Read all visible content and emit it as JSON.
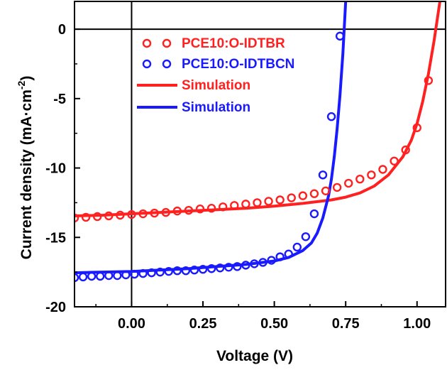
{
  "chart_data": {
    "type": "line",
    "xlabel": "Voltage (V)",
    "ylabel_main": "Current density (mA·cm",
    "ylabel_sup": "-2",
    "ylabel_close": ")",
    "xlim": [
      -0.2,
      1.1
    ],
    "ylim": [
      -20,
      2
    ],
    "x_ticks": [
      0.0,
      0.25,
      0.5,
      0.75,
      1.0
    ],
    "x_tick_labels": [
      "0.00",
      "0.25",
      "0.50",
      "0.75",
      "1.00"
    ],
    "y_ticks": [
      0,
      -5,
      -10,
      -15,
      -20
    ],
    "y_tick_labels": [
      "0",
      "-5",
      "-10",
      "-15",
      "-20"
    ],
    "reference_lines": {
      "x": 0,
      "y": 0
    },
    "grid": false,
    "legend_position": "top-center",
    "series": [
      {
        "name": "PCE10:O-IDTBR",
        "kind": "markers",
        "marker": "open-circle",
        "color": "#ff2020",
        "x": [
          -0.2,
          -0.16,
          -0.12,
          -0.08,
          -0.04,
          0.0,
          0.04,
          0.08,
          0.12,
          0.16,
          0.2,
          0.24,
          0.28,
          0.32,
          0.36,
          0.4,
          0.44,
          0.48,
          0.52,
          0.56,
          0.6,
          0.64,
          0.68,
          0.72,
          0.76,
          0.8,
          0.84,
          0.88,
          0.92,
          0.96,
          1.0,
          1.04
        ],
        "y": [
          -13.6,
          -13.55,
          -13.5,
          -13.45,
          -13.4,
          -13.35,
          -13.3,
          -13.25,
          -13.2,
          -13.1,
          -13.05,
          -12.95,
          -12.9,
          -12.8,
          -12.7,
          -12.6,
          -12.5,
          -12.4,
          -12.3,
          -12.15,
          -12.0,
          -11.85,
          -11.65,
          -11.4,
          -11.1,
          -10.8,
          -10.5,
          -10.1,
          -9.5,
          -8.7,
          -7.1,
          -3.7
        ]
      },
      {
        "name": "PCE10:O-IDTBCN",
        "kind": "markers",
        "marker": "open-circle",
        "color": "#1a1aff",
        "x": [
          -0.2,
          -0.17,
          -0.14,
          -0.11,
          -0.08,
          -0.05,
          -0.02,
          0.01,
          0.04,
          0.07,
          0.1,
          0.13,
          0.16,
          0.19,
          0.22,
          0.25,
          0.28,
          0.31,
          0.34,
          0.37,
          0.4,
          0.43,
          0.46,
          0.49,
          0.52,
          0.55,
          0.58,
          0.61,
          0.64,
          0.67,
          0.7,
          0.73
        ],
        "y": [
          -17.9,
          -17.85,
          -17.8,
          -17.8,
          -17.75,
          -17.75,
          -17.7,
          -17.65,
          -17.6,
          -17.55,
          -17.5,
          -17.45,
          -17.4,
          -17.4,
          -17.35,
          -17.3,
          -17.25,
          -17.2,
          -17.15,
          -17.1,
          -17.0,
          -16.9,
          -16.8,
          -16.65,
          -16.4,
          -16.2,
          -15.7,
          -14.95,
          -13.3,
          -10.5,
          -6.3,
          -0.5
        ]
      },
      {
        "name": "Simulation",
        "kind": "line",
        "color": "#ff2020",
        "x": [
          -0.2,
          -0.1,
          0.0,
          0.1,
          0.2,
          0.3,
          0.4,
          0.5,
          0.6,
          0.7,
          0.75,
          0.8,
          0.85,
          0.9,
          0.95,
          0.98,
          1.0,
          1.02,
          1.04,
          1.06,
          1.08
        ],
        "y": [
          -13.45,
          -13.4,
          -13.3,
          -13.2,
          -13.1,
          -13.0,
          -12.9,
          -12.75,
          -12.55,
          -12.3,
          -12.1,
          -11.8,
          -11.3,
          -10.5,
          -9.2,
          -8.0,
          -6.8,
          -5.2,
          -3.2,
          -0.8,
          2.0
        ]
      },
      {
        "name": "Simulation",
        "kind": "line",
        "color": "#1a1aff",
        "x": [
          -0.2,
          -0.1,
          0.0,
          0.1,
          0.2,
          0.3,
          0.4,
          0.5,
          0.55,
          0.6,
          0.63,
          0.65,
          0.67,
          0.69,
          0.7,
          0.71,
          0.72,
          0.73,
          0.74,
          0.75
        ],
        "y": [
          -17.55,
          -17.5,
          -17.45,
          -17.35,
          -17.25,
          -17.1,
          -16.95,
          -16.7,
          -16.45,
          -15.95,
          -15.4,
          -14.7,
          -13.6,
          -12.0,
          -10.8,
          -9.2,
          -7.2,
          -4.8,
          -1.8,
          2.0
        ]
      }
    ]
  }
}
